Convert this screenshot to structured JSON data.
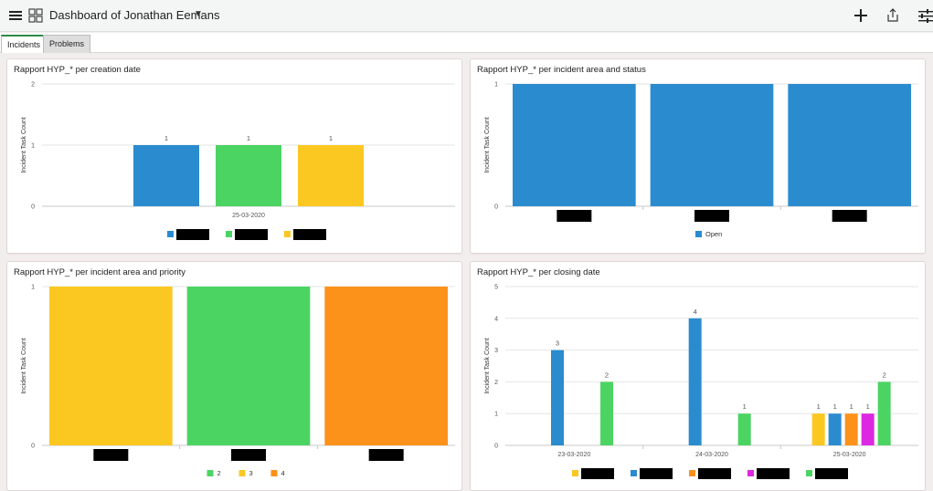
{
  "header": {
    "title": "Dashboard of Jonathan Eemans",
    "icons": [
      "menu-icon",
      "dashboard-grid-icon",
      "dropdown-caret-icon",
      "add-icon",
      "share-icon",
      "filter-sliders-icon"
    ]
  },
  "tabs": [
    {
      "label": "Incidents",
      "active": true
    },
    {
      "label": "Problems",
      "active": false
    }
  ],
  "colors": {
    "blue": "#2a8ccf",
    "green": "#4cd463",
    "yellow": "#fbc822",
    "orange": "#fc9219",
    "magenta": "#dc28e0",
    "redacted": "#000000"
  },
  "chart_data": [
    {
      "title": "Rapport HYP_* per creation date",
      "type": "bar",
      "ylabel": "Incident Task Count",
      "ylim": [
        0,
        2
      ],
      "yticks": [
        "0",
        "1",
        "2"
      ],
      "categories": [
        "25-03-2020"
      ],
      "series": [
        {
          "name": "",
          "color": "#2a8ccf",
          "values": [
            1
          ]
        },
        {
          "name": "",
          "color": "#4cd463",
          "values": [
            1
          ]
        },
        {
          "name": "",
          "color": "#fbc822",
          "values": [
            1
          ]
        }
      ],
      "data_labels": true,
      "legend": "bottom"
    },
    {
      "title": "Rapport HYP_* per incident area and status",
      "type": "bar",
      "ylabel": "Incident Task Count",
      "ylim": [
        0,
        1
      ],
      "yticks": [
        "0",
        "1"
      ],
      "categories": [
        "",
        "",
        ""
      ],
      "series": [
        {
          "name": "Open",
          "color": "#2a8ccf",
          "values": [
            1,
            1,
            1
          ]
        }
      ],
      "data_labels": false,
      "legend": "bottom"
    },
    {
      "title": "Rapport HYP_* per incident area and priority",
      "type": "bar",
      "ylabel": "Incident Task Count",
      "ylim": [
        0,
        1
      ],
      "yticks": [
        "0",
        "1"
      ],
      "categories": [
        "",
        "",
        ""
      ],
      "series": [
        {
          "name": "3",
          "color": "#fbc822",
          "values": [
            1,
            null,
            null
          ]
        },
        {
          "name": "2",
          "color": "#4cd463",
          "values": [
            null,
            1,
            null
          ]
        },
        {
          "name": "4",
          "color": "#fc9219",
          "values": [
            null,
            null,
            1
          ]
        }
      ],
      "legend_order": [
        "2",
        "3",
        "4"
      ],
      "data_labels": false,
      "legend": "bottom"
    },
    {
      "title": "Rapport HYP_* per closing date",
      "type": "bar",
      "ylabel": "Incident Task Count",
      "ylim": [
        0,
        5
      ],
      "yticks": [
        "0",
        "1",
        "2",
        "3",
        "4",
        "5"
      ],
      "categories": [
        "23-03-2020",
        "24-03-2020",
        "25-03-2020"
      ],
      "series": [
        {
          "name": "",
          "color": "#fbc822",
          "values": [
            null,
            null,
            1
          ]
        },
        {
          "name": "",
          "color": "#2a8ccf",
          "values": [
            3,
            4,
            1
          ]
        },
        {
          "name": "",
          "color": "#fc9219",
          "values": [
            null,
            null,
            1
          ]
        },
        {
          "name": "",
          "color": "#dc28e0",
          "values": [
            null,
            null,
            1
          ]
        },
        {
          "name": "",
          "color": "#4cd463",
          "values": [
            2,
            1,
            2
          ]
        }
      ],
      "data_labels": true,
      "legend": "bottom"
    }
  ]
}
